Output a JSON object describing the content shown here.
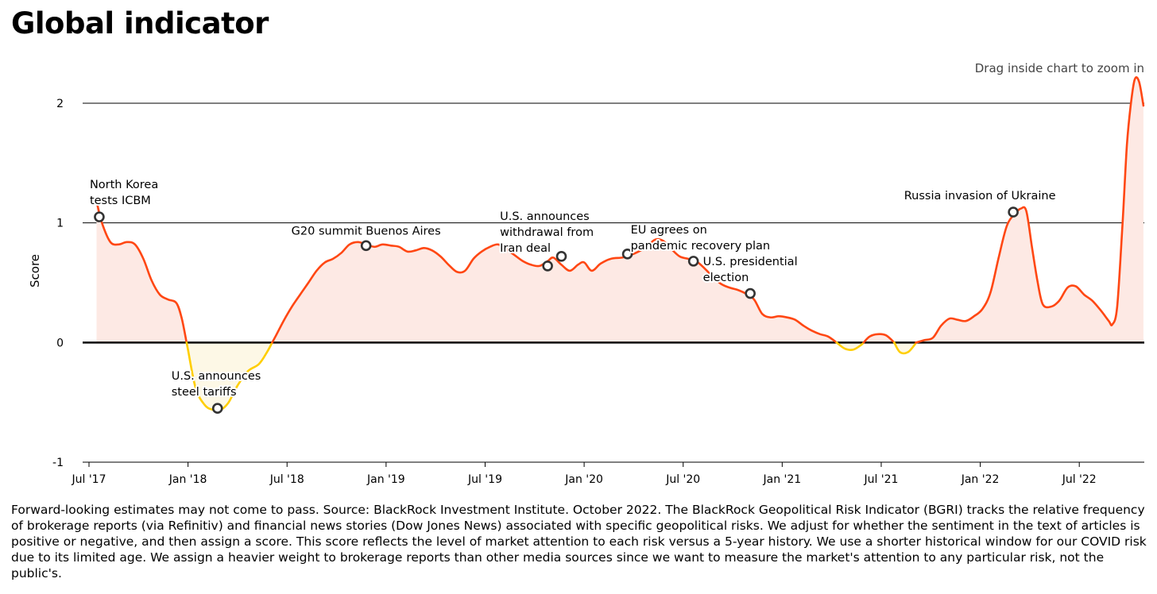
{
  "title": "Global indicator",
  "zoom_hint": "Drag inside chart to zoom in",
  "footnote": "Forward-looking estimates may not come to pass. Source: BlackRock Investment Institute. October 2022. The BlackRock Geopolitical Risk Indicator (BGRI) tracks the relative frequency of brokerage reports (via Refinitiv) and financial news stories (Dow Jones News) associated with specific geopolitical risks. We adjust for whether the sentiment in the text of articles is positive or negative, and then assign a score. This score reflects the level of market attention to each risk versus a 5-year history. We use a shorter historical window for our COVID risk due to its limited age. We assign a heavier weight to brokerage reports than other media sources since we want to measure the market's attention to any particular risk, not the public's.",
  "chart_data": {
    "type": "area",
    "ylabel": "Score",
    "ylim": [
      -1,
      2
    ],
    "yticks": [
      2,
      1,
      0,
      -1
    ],
    "xticks": [
      "Jul '17",
      "Jan '18",
      "Jul '18",
      "Jan '19",
      "Jul '19",
      "Jan '20",
      "Jul '20",
      "Jan '21",
      "Jul '21",
      "Jan '22",
      "Jul '22"
    ],
    "xrange": [
      "2017-07",
      "2022-10"
    ],
    "colors": {
      "positive_line": "#ff4713",
      "negative_line": "#ffce00",
      "positive_fill": "#fde9e4",
      "negative_fill": "#fdf8e6",
      "marker_stroke": "#333333"
    },
    "series": [
      {
        "points": [
          [
            "2017-07-15",
            1.18
          ],
          [
            "2017-07-25",
            1.0
          ],
          [
            "2017-08-10",
            0.84
          ],
          [
            "2017-08-25",
            0.82
          ],
          [
            "2017-09-10",
            0.84
          ],
          [
            "2017-09-25",
            0.82
          ],
          [
            "2017-10-10",
            0.7
          ],
          [
            "2017-10-25",
            0.52
          ],
          [
            "2017-11-10",
            0.4
          ],
          [
            "2017-11-25",
            0.36
          ],
          [
            "2017-12-10",
            0.33
          ],
          [
            "2017-12-20",
            0.2
          ],
          [
            "2017-12-31",
            -0.05
          ],
          [
            "2018-01-15",
            -0.38
          ],
          [
            "2018-02-01",
            -0.52
          ],
          [
            "2018-02-15",
            -0.56
          ],
          [
            "2018-03-01",
            -0.56
          ],
          [
            "2018-03-15",
            -0.5
          ],
          [
            "2018-04-01",
            -0.36
          ],
          [
            "2018-04-20",
            -0.24
          ],
          [
            "2018-05-10",
            -0.18
          ],
          [
            "2018-05-25",
            -0.08
          ],
          [
            "2018-06-10",
            0.05
          ],
          [
            "2018-06-25",
            0.18
          ],
          [
            "2018-07-10",
            0.3
          ],
          [
            "2018-07-25",
            0.4
          ],
          [
            "2018-08-10",
            0.5
          ],
          [
            "2018-08-25",
            0.6
          ],
          [
            "2018-09-10",
            0.67
          ],
          [
            "2018-09-25",
            0.7
          ],
          [
            "2018-10-10",
            0.75
          ],
          [
            "2018-10-25",
            0.82
          ],
          [
            "2018-11-10",
            0.84
          ],
          [
            "2018-11-25",
            0.82
          ],
          [
            "2018-12-10",
            0.8
          ],
          [
            "2018-12-25",
            0.82
          ],
          [
            "2019-01-10",
            0.81
          ],
          [
            "2019-01-25",
            0.8
          ],
          [
            "2019-02-10",
            0.76
          ],
          [
            "2019-02-25",
            0.77
          ],
          [
            "2019-03-10",
            0.79
          ],
          [
            "2019-03-25",
            0.77
          ],
          [
            "2019-04-10",
            0.72
          ],
          [
            "2019-04-25",
            0.65
          ],
          [
            "2019-05-10",
            0.59
          ],
          [
            "2019-05-25",
            0.6
          ],
          [
            "2019-06-10",
            0.7
          ],
          [
            "2019-06-25",
            0.76
          ],
          [
            "2019-07-10",
            0.8
          ],
          [
            "2019-07-25",
            0.82
          ],
          [
            "2019-08-10",
            0.78
          ],
          [
            "2019-08-25",
            0.73
          ],
          [
            "2019-09-10",
            0.68
          ],
          [
            "2019-09-25",
            0.65
          ],
          [
            "2019-10-10",
            0.64
          ],
          [
            "2019-10-25",
            0.68
          ],
          [
            "2019-11-05",
            0.71
          ],
          [
            "2019-11-20",
            0.65
          ],
          [
            "2019-12-05",
            0.6
          ],
          [
            "2019-12-20",
            0.65
          ],
          [
            "2020-01-01",
            0.67
          ],
          [
            "2020-01-15",
            0.6
          ],
          [
            "2020-02-01",
            0.66
          ],
          [
            "2020-02-20",
            0.7
          ],
          [
            "2020-03-10",
            0.71
          ],
          [
            "2020-03-25",
            0.73
          ],
          [
            "2020-04-10",
            0.76
          ],
          [
            "2020-04-25",
            0.8
          ],
          [
            "2020-05-10",
            0.86
          ],
          [
            "2020-05-25",
            0.85
          ],
          [
            "2020-06-10",
            0.78
          ],
          [
            "2020-06-25",
            0.72
          ],
          [
            "2020-07-10",
            0.7
          ],
          [
            "2020-07-25",
            0.68
          ],
          [
            "2020-08-10",
            0.62
          ],
          [
            "2020-08-25",
            0.55
          ],
          [
            "2020-09-10",
            0.49
          ],
          [
            "2020-09-25",
            0.46
          ],
          [
            "2020-10-10",
            0.44
          ],
          [
            "2020-10-25",
            0.41
          ],
          [
            "2020-11-10",
            0.36
          ],
          [
            "2020-11-25",
            0.24
          ],
          [
            "2020-12-10",
            0.21
          ],
          [
            "2020-12-25",
            0.22
          ],
          [
            "2021-01-10",
            0.21
          ],
          [
            "2021-01-25",
            0.19
          ],
          [
            "2021-02-10",
            0.14
          ],
          [
            "2021-02-25",
            0.1
          ],
          [
            "2021-03-10",
            0.07
          ],
          [
            "2021-03-25",
            0.05
          ],
          [
            "2021-04-10",
            0.0
          ],
          [
            "2021-04-25",
            -0.05
          ],
          [
            "2021-05-10",
            -0.06
          ],
          [
            "2021-05-25",
            -0.02
          ],
          [
            "2021-06-10",
            0.05
          ],
          [
            "2021-06-25",
            0.07
          ],
          [
            "2021-07-10",
            0.06
          ],
          [
            "2021-07-25",
            0.0
          ],
          [
            "2021-08-05",
            -0.08
          ],
          [
            "2021-08-20",
            -0.08
          ],
          [
            "2021-09-05",
            0.0
          ],
          [
            "2021-09-20",
            0.02
          ],
          [
            "2021-10-05",
            0.04
          ],
          [
            "2021-10-20",
            0.14
          ],
          [
            "2021-11-05",
            0.2
          ],
          [
            "2021-11-20",
            0.19
          ],
          [
            "2021-12-05",
            0.18
          ],
          [
            "2021-12-20",
            0.22
          ],
          [
            "2022-01-05",
            0.28
          ],
          [
            "2022-01-20",
            0.42
          ],
          [
            "2022-02-05",
            0.72
          ],
          [
            "2022-02-20",
            0.98
          ],
          [
            "2022-03-05",
            1.08
          ],
          [
            "2022-03-15",
            1.12
          ],
          [
            "2022-03-25",
            1.1
          ],
          [
            "2022-04-05",
            0.8
          ],
          [
            "2022-04-15",
            0.52
          ],
          [
            "2022-04-25",
            0.32
          ],
          [
            "2022-05-10",
            0.3
          ],
          [
            "2022-05-25",
            0.35
          ],
          [
            "2022-06-10",
            0.46
          ],
          [
            "2022-06-25",
            0.47
          ],
          [
            "2022-07-10",
            0.4
          ],
          [
            "2022-07-25",
            0.35
          ],
          [
            "2022-08-10",
            0.27
          ],
          [
            "2022-08-25",
            0.18
          ],
          [
            "2022-09-01",
            0.15
          ],
          [
            "2022-09-10",
            0.3
          ],
          [
            "2022-09-20",
            1.0
          ],
          [
            "2022-09-28",
            1.65
          ],
          [
            "2022-10-05",
            2.0
          ],
          [
            "2022-10-12",
            2.2
          ],
          [
            "2022-10-20",
            2.18
          ],
          [
            "2022-10-28",
            1.98
          ]
        ]
      }
    ],
    "annotations": [
      {
        "date": "2017-07-20",
        "value": 1.05,
        "label_lines": [
          "North Korea",
          "tests ICBM"
        ],
        "anchor": "start",
        "dx": -12,
        "dy": -36
      },
      {
        "date": "2018-02-25",
        "value": -0.55,
        "label_lines": [
          "U.S. announces",
          "steel tariffs"
        ],
        "anchor": "start",
        "dx": -58,
        "dy": -36
      },
      {
        "date": "2018-11-25",
        "value": 0.81,
        "label_lines": [
          "G20 summit Buenos Aires"
        ],
        "anchor": "middle",
        "dx": 0,
        "dy": -14
      },
      {
        "date": "2019-10-25",
        "value": 0.64,
        "label_lines": [
          "U.S. announces",
          "withdrawal from",
          "Iran deal"
        ],
        "anchor": "start",
        "dx": -60,
        "dy": -58
      },
      {
        "date": "2019-11-20",
        "value": 0.72,
        "label_lines": [],
        "anchor": "start",
        "dx": 0,
        "dy": 0
      },
      {
        "date": "2020-03-20",
        "value": 0.74,
        "label_lines": [
          "EU agrees on",
          "pandemic recovery plan"
        ],
        "anchor": "start",
        "dx": 4,
        "dy": -26
      },
      {
        "date": "2020-07-20",
        "value": 0.68,
        "label_lines": [
          "U.S. presidential",
          "election"
        ],
        "anchor": "start",
        "dx": 12,
        "dy": 5
      },
      {
        "date": "2020-11-03",
        "value": 0.41,
        "label_lines": [],
        "anchor": "start",
        "dx": 0,
        "dy": 0
      },
      {
        "date": "2022-03-01",
        "value": 1.09,
        "label_lines": [
          "Russia invasion of Ukraine"
        ],
        "anchor": "middle",
        "dx": -42,
        "dy": -16
      }
    ]
  }
}
